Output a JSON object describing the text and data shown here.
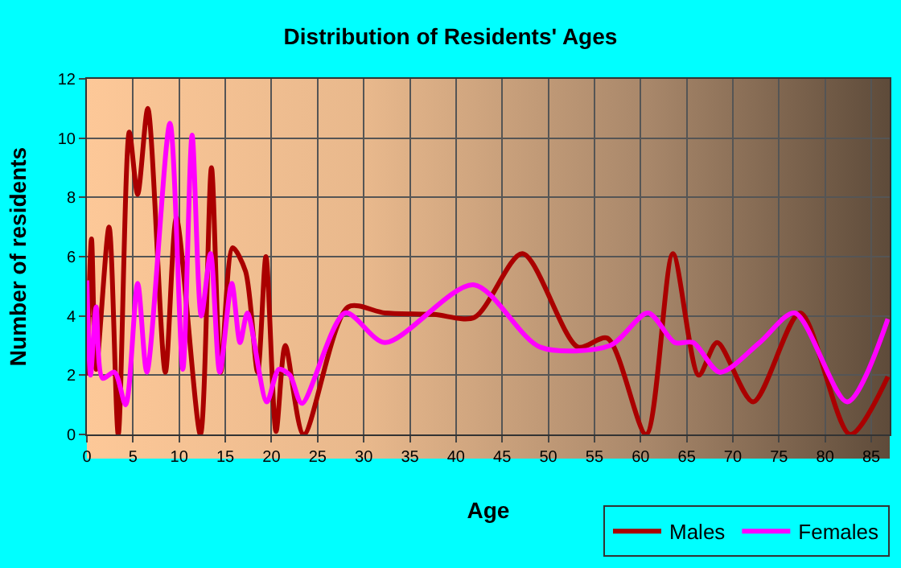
{
  "chart_data": {
    "type": "line",
    "title": "Distribution of Residents' Ages",
    "xlabel": "Age",
    "ylabel": "Number of residents",
    "xlim": [
      0,
      87
    ],
    "xticks": [
      0,
      5,
      10,
      15,
      20,
      25,
      30,
      35,
      40,
      45,
      50,
      55,
      60,
      65,
      70,
      75,
      80,
      85
    ],
    "ylim": [
      0,
      12
    ],
    "yticks": [
      0,
      2,
      4,
      6,
      8,
      10,
      12
    ],
    "grid": true,
    "legend": "bottom right",
    "marker": "none",
    "line_style": "solid",
    "series": [
      {
        "name": "Males",
        "color": "#aa0000",
        "x": [
          0,
          0.5,
          1,
          2.4,
          3.4,
          4.6,
          5.5,
          6.6,
          8.5,
          9.7,
          12.3,
          13.5,
          14.5,
          15.8,
          17.2,
          18.5,
          19.4,
          20.5,
          21.5,
          23.5,
          28.3,
          32.3,
          37.6,
          42,
          47.2,
          53.2,
          56.4,
          60.6,
          63.5,
          66.3,
          68.3,
          72.2,
          77.3,
          82.7,
          86.8
        ],
        "values": [
          2,
          6.6,
          2.2,
          7,
          0,
          10.2,
          8.1,
          11,
          2.1,
          7.3,
          0,
          9,
          2.1,
          6.3,
          5.5,
          2.1,
          6,
          0.1,
          3,
          0,
          4.3,
          4.1,
          4.05,
          3.95,
          6.1,
          2.95,
          3.25,
          0,
          6.1,
          2,
          3.1,
          1.1,
          4.1,
          0,
          1.95
        ]
      },
      {
        "name": "Females",
        "color": "#ff00ff",
        "x": [
          0,
          0.4,
          1,
          1.7,
          3,
          4.2,
          5.5,
          6.5,
          9,
          10.4,
          11.4,
          12.4,
          13.4,
          14.4,
          15.7,
          16.6,
          17.4,
          19.5,
          20.8,
          22,
          23.3,
          28,
          32.3,
          41.9,
          49.1,
          56.7,
          60.8,
          63.7,
          65.7,
          68.6,
          72.9,
          76.7,
          82.4,
          86.8
        ],
        "values": [
          5.2,
          2,
          4.3,
          1.9,
          2.1,
          1,
          5.1,
          2.1,
          10.5,
          2.2,
          10.1,
          4,
          6.1,
          2.1,
          5.1,
          3.1,
          4.1,
          1.1,
          2.2,
          2,
          1.05,
          4.1,
          3.1,
          5.05,
          2.95,
          3,
          4.1,
          3.1,
          3.1,
          2.1,
          3.1,
          4.1,
          1.1,
          3.9
        ]
      }
    ]
  }
}
